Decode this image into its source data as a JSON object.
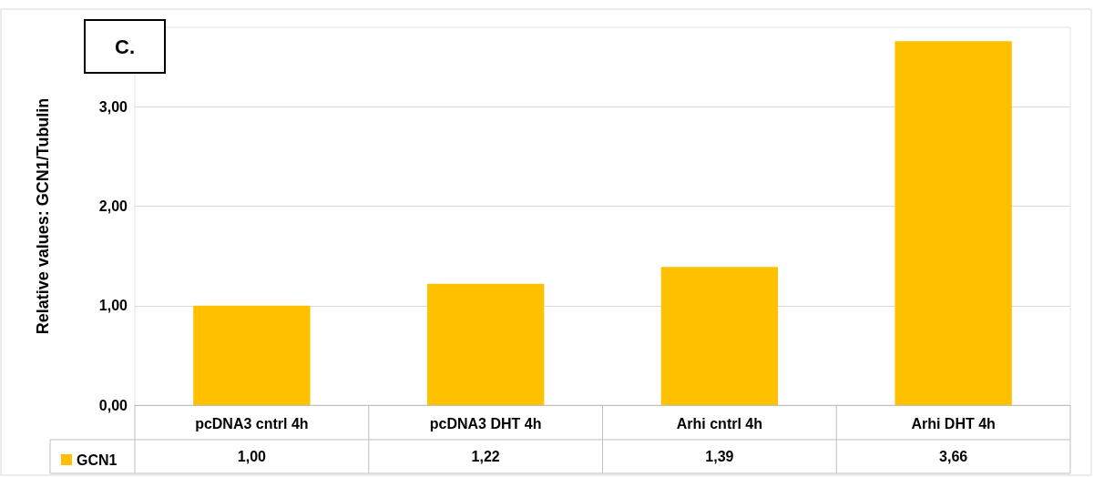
{
  "chart_data": {
    "type": "bar",
    "ylabel": "Relative values: GCN1/Tubulin",
    "annotations": [
      "C."
    ],
    "categories": [
      "pcDNA3 cntrl 4h",
      "pcDNA3 DHT 4h",
      "Arhi cntrl 4h",
      "Arhi DHT 4h"
    ],
    "series": [
      {
        "name": "GCN1",
        "color": "#ffc000",
        "values": [
          1.0,
          1.22,
          1.39,
          3.66
        ],
        "value_labels": [
          "1,00",
          "1,22",
          "1,39",
          "3,66"
        ]
      }
    ],
    "ylim": [
      0,
      3.8
    ],
    "yticks": [
      {
        "value": 0,
        "label": "0,00"
      },
      {
        "value": 1,
        "label": "1,00"
      },
      {
        "value": 2,
        "label": "2,00"
      },
      {
        "value": 3,
        "label": "3,00"
      }
    ],
    "grid": "y",
    "legend": "bottom left"
  }
}
